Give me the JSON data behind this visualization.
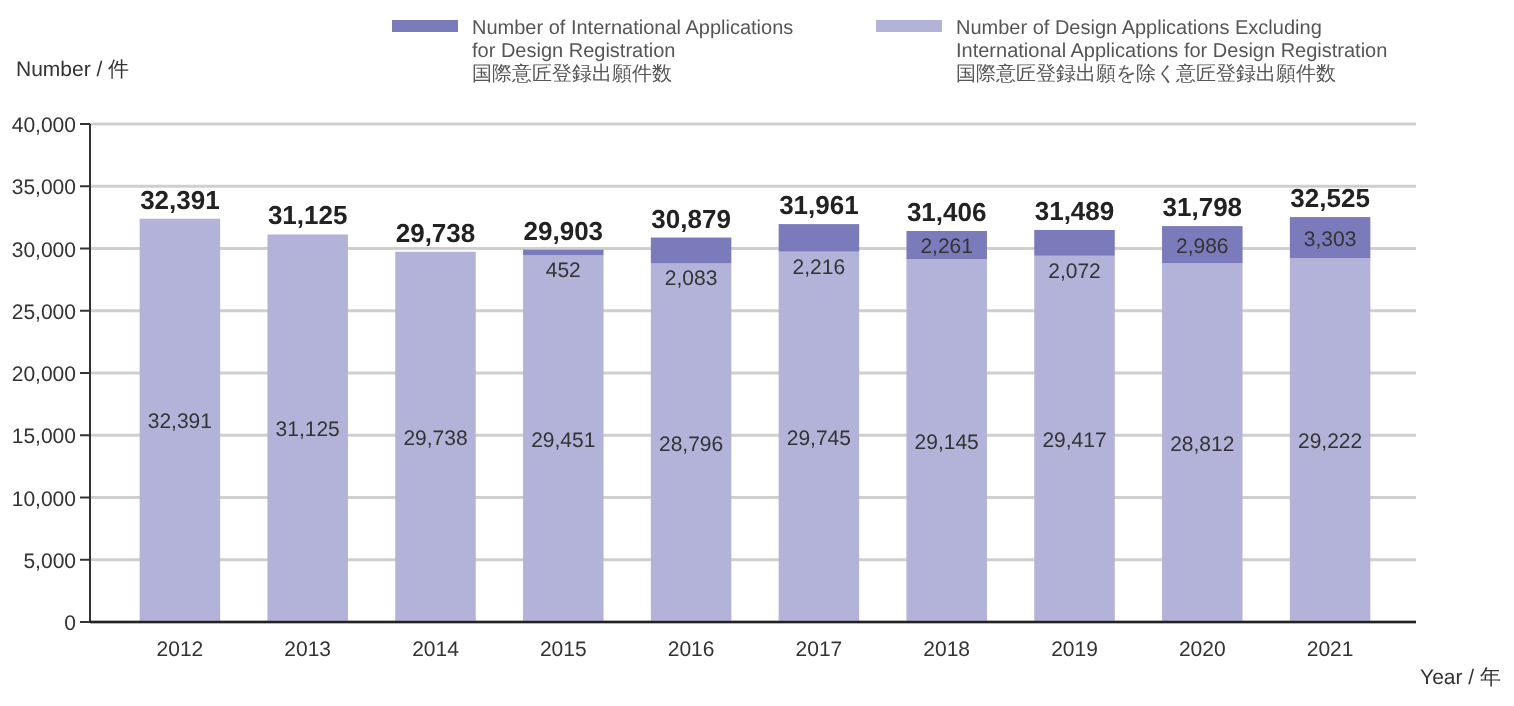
{
  "chart_data": {
    "type": "bar",
    "stacked": true,
    "ylabel": "Number / 件",
    "xlabel": "Year / 年",
    "categories": [
      "2012",
      "2013",
      "2014",
      "2015",
      "2016",
      "2017",
      "2018",
      "2019",
      "2020",
      "2021"
    ],
    "series": [
      {
        "name": "Number of Design Applications Excluding\nInternational  Applications for Design Registration\n国際意匠登録出願を除く意匠登録出願件数",
        "color": "#b3b3d9",
        "values": [
          32391,
          31125,
          29738,
          29451,
          28796,
          29745,
          29145,
          29417,
          28812,
          29222
        ],
        "value_labels": [
          "32,391",
          "31,125",
          "29,738",
          "29,451",
          "28,796",
          "29,745",
          "29,145",
          "29,417",
          "28,812",
          "29,222"
        ]
      },
      {
        "name": "Number of International Applications\nfor Design Registration\n国際意匠登録出願件数",
        "color": "#7b7bbb",
        "values": [
          null,
          null,
          null,
          452,
          2083,
          2216,
          2261,
          2072,
          2986,
          3303
        ],
        "value_labels": [
          null,
          null,
          null,
          "452",
          "2,083",
          "2,216",
          "2,261",
          "2,072",
          "2,986",
          "3,303"
        ]
      }
    ],
    "totals": [
      "32,391",
      "31,125",
      "29,738",
      "29,903",
      "30,879",
      "31,961",
      "31,406",
      "31,489",
      "31,798",
      "32,525"
    ],
    "ylim": [
      0,
      40000
    ],
    "yticks": [
      0,
      {
        "value": 5000,
        "label": "5,000"
      },
      {
        "value": 10000,
        "label": "10,000"
      },
      {
        "value": 15000,
        "label": "15,000"
      },
      {
        "value": 20000,
        "label": "20,000"
      },
      {
        "value": 25000,
        "label": "25,000"
      },
      {
        "value": 30000,
        "label": "30,000"
      },
      {
        "value": 35000,
        "label": "35,000"
      },
      {
        "value": 40000,
        "label": "40,000"
      }
    ],
    "grid": "y",
    "legend": "top"
  }
}
